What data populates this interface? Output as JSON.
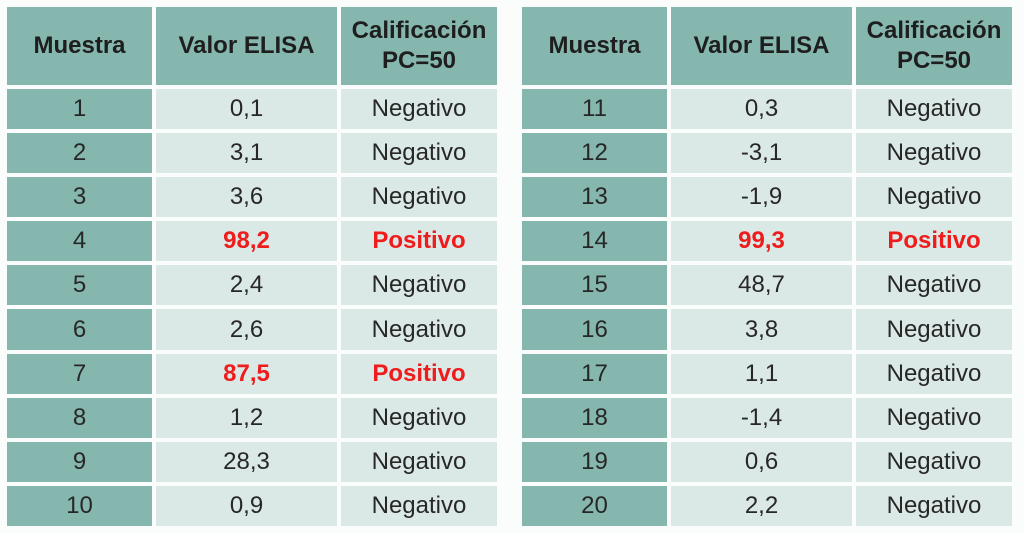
{
  "colors": {
    "header_bg": "#85b7af",
    "sample_col_bg": "#85b7af",
    "data_cell_bg": "#dbe9e6",
    "text": "#272727",
    "positive_text": "#ee1c1c",
    "page_bg": "#fbfdfd"
  },
  "tables": [
    {
      "name": "samples-1-10",
      "headers": {
        "sample": "Muestra",
        "value": "Valor ELISA",
        "qualification": "Calificación\nPC=50"
      },
      "rows": [
        {
          "sample": "1",
          "value": "0,1",
          "qualification": "Negativo",
          "positive": false
        },
        {
          "sample": "2",
          "value": "3,1",
          "qualification": "Negativo",
          "positive": false
        },
        {
          "sample": "3",
          "value": "3,6",
          "qualification": "Negativo",
          "positive": false
        },
        {
          "sample": "4",
          "value": "98,2",
          "qualification": "Positivo",
          "positive": true
        },
        {
          "sample": "5",
          "value": "2,4",
          "qualification": "Negativo",
          "positive": false
        },
        {
          "sample": "6",
          "value": "2,6",
          "qualification": "Negativo",
          "positive": false
        },
        {
          "sample": "7",
          "value": "87,5",
          "qualification": "Positivo",
          "positive": true
        },
        {
          "sample": "8",
          "value": "1,2",
          "qualification": "Negativo",
          "positive": false
        },
        {
          "sample": "9",
          "value": "28,3",
          "qualification": "Negativo",
          "positive": false
        },
        {
          "sample": "10",
          "value": "0,9",
          "qualification": "Negativo",
          "positive": false
        }
      ]
    },
    {
      "name": "samples-11-20",
      "headers": {
        "sample": "Muestra",
        "value": "Valor ELISA",
        "qualification": "Calificación\nPC=50"
      },
      "rows": [
        {
          "sample": "11",
          "value": "0,3",
          "qualification": "Negativo",
          "positive": false
        },
        {
          "sample": "12",
          "value": "-3,1",
          "qualification": "Negativo",
          "positive": false
        },
        {
          "sample": "13",
          "value": "-1,9",
          "qualification": "Negativo",
          "positive": false
        },
        {
          "sample": "14",
          "value": "99,3",
          "qualification": "Positivo",
          "positive": true
        },
        {
          "sample": "15",
          "value": "48,7",
          "qualification": "Negativo",
          "positive": false
        },
        {
          "sample": "16",
          "value": "3,8",
          "qualification": "Negativo",
          "positive": false
        },
        {
          "sample": "17",
          "value": "1,1",
          "qualification": "Negativo",
          "positive": false
        },
        {
          "sample": "18",
          "value": "-1,4",
          "qualification": "Negativo",
          "positive": false
        },
        {
          "sample": "19",
          "value": "0,6",
          "qualification": "Negativo",
          "positive": false
        },
        {
          "sample": "20",
          "value": "2,2",
          "qualification": "Negativo",
          "positive": false
        }
      ]
    }
  ]
}
